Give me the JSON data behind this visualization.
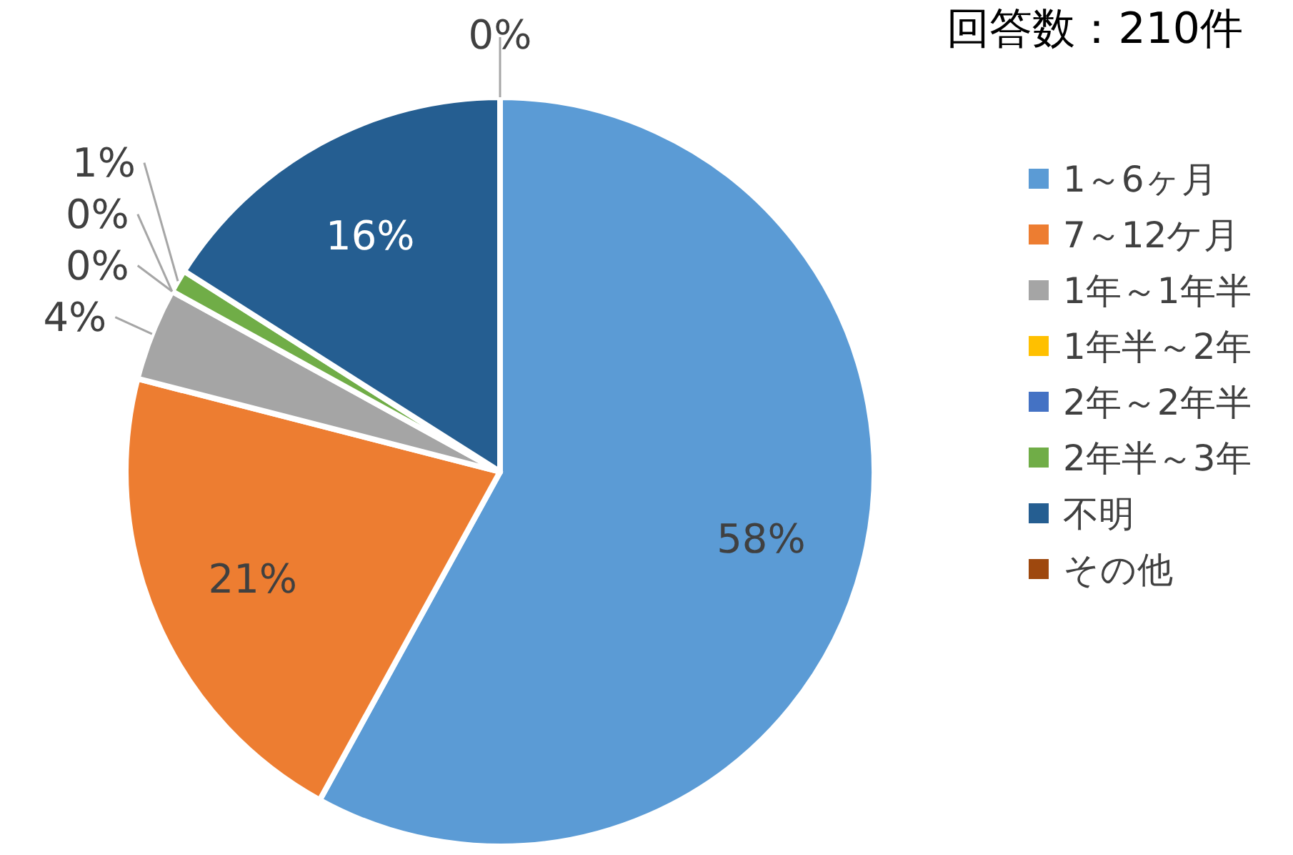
{
  "chart_data": {
    "type": "pie",
    "title": "回答数：210件",
    "categories": [
      "1～6ヶ月",
      "7～12ケ月",
      "1年～1年半",
      "1年半～2年",
      "2年～2年半",
      "2年半～3年",
      "不明",
      "その他"
    ],
    "values": [
      58,
      21,
      4,
      0,
      0,
      1,
      16,
      0
    ],
    "value_labels": [
      "58%",
      "21%",
      "4%",
      "0%",
      "0%",
      "1%",
      "16%",
      "0%"
    ],
    "colors": [
      "#5b9bd5",
      "#ed7d31",
      "#a5a5a5",
      "#ffc000",
      "#4472c4",
      "#70ad47",
      "#255e91",
      "#9e480e"
    ],
    "legend": "right"
  }
}
